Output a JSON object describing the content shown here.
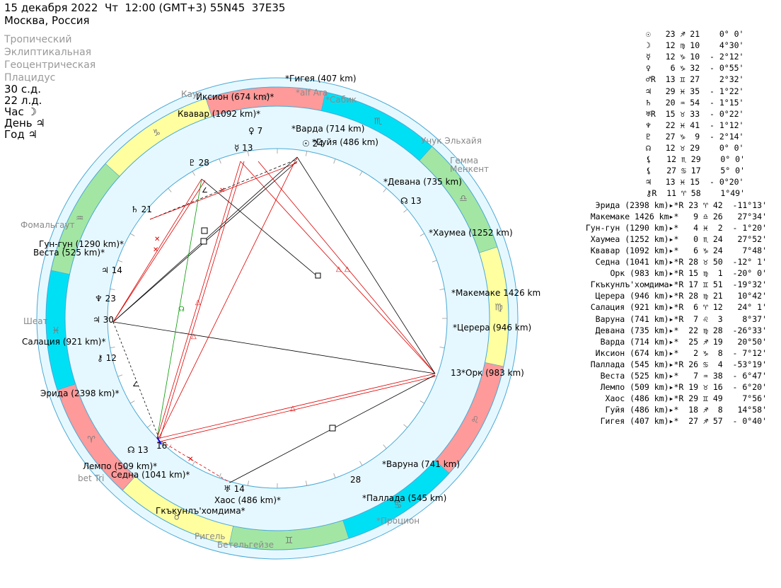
{
  "header": {
    "line1": "15 декабря 2022  Чт  12:00 (GMT+3) 55N45  37E35",
    "line2": "Москва, Россия"
  },
  "settings": {
    "zodiac": "Тропический",
    "coords": "Эклиптикальная",
    "center": "Геоцентрическая",
    "houses": "Плацидус",
    "lunar_day": "30 с.д.",
    "solar_day": "22 л.д.",
    "hour": "Час ☽",
    "day": "День ♃",
    "year": "Год ♃"
  },
  "wheel": {
    "ring_signs": [
      "♐",
      "♏",
      "♎",
      "♍",
      "♌",
      "♋",
      "♊",
      "♉",
      "♈",
      "♓",
      "♒",
      "♑"
    ],
    "cusp_degrees": {
      "c1": "30",
      "c2": "12",
      "c3": "13",
      "c3b": "16",
      "c4": "14",
      "c5": "28",
      "c6": "13",
      "c7": "13",
      "c8": "24",
      "c9": "7",
      "c10": "13",
      "c11": "28",
      "c12": "21",
      "c13": "14",
      "c14": "23"
    },
    "stars": [
      "alf Ara",
      "Сабик",
      "Унук Эльхайя",
      "Гемма",
      "Менкент",
      "Процион",
      "Бетельгейзе",
      "Ригель",
      "bet Tri",
      "Шеат",
      "Фомальгаут",
      "Каус Аустралис"
    ],
    "asteroids": [
      "Гигея (407 km)",
      "Иксион (674 km)",
      "Квавар (1092 km)",
      "Варда (714 km)",
      "Гуйя (486 km)",
      "Девана (735 km)",
      "Хаумеа (1252 km)",
      "Макемаке 1426 km",
      "Церера (946 km)",
      "Орк (983 km)",
      "Варуна (741 km)",
      "Паллада (545 km)",
      "Хаос (486 km)",
      "Гкъкунлъ'хомдима",
      "Седна (1041 km)",
      "Лемпо (509 km)",
      "Эрида (2398 km)",
      "Салация (921 km)",
      "Веста (525 km)",
      "Гун-гун (1290 km)"
    ]
  },
  "table": {
    "planets": [
      {
        "glyph": "☉",
        "r": "",
        "deg": "23",
        "sign": "♐",
        "min": "21",
        "speed": "  0° 0'"
      },
      {
        "glyph": "☽",
        "r": "",
        "deg": "12",
        "sign": "♍",
        "min": "10",
        "speed": "  4°30'"
      },
      {
        "glyph": "☿",
        "r": "",
        "deg": "12",
        "sign": "♑",
        "min": "10",
        "speed": "- 2°12'"
      },
      {
        "glyph": "♀",
        "r": "",
        "deg": " 6",
        "sign": "♑",
        "min": "32",
        "speed": "- 0°55'"
      },
      {
        "glyph": "♂",
        "r": "R",
        "deg": "13",
        "sign": "♊",
        "min": "27",
        "speed": "  2°32'"
      },
      {
        "glyph": "♃",
        "r": "",
        "deg": "29",
        "sign": "♓",
        "min": "35",
        "speed": "- 1°22'"
      },
      {
        "glyph": "♄",
        "r": "",
        "deg": "20",
        "sign": "♒",
        "min": "54",
        "speed": "- 1°15'"
      },
      {
        "glyph": "♅",
        "r": "R",
        "deg": "15",
        "sign": "♉",
        "min": "33",
        "speed": "- 0°22'"
      },
      {
        "glyph": "♆",
        "r": "",
        "deg": "22",
        "sign": "♓",
        "min": "41",
        "speed": "- 1°12'"
      },
      {
        "glyph": "♇",
        "r": "",
        "deg": "27",
        "sign": "♑",
        "min": " 9",
        "speed": "- 2°14'"
      },
      {
        "glyph": "☊",
        "r": "",
        "deg": "12",
        "sign": "♉",
        "min": "29",
        "speed": "  0° 0'"
      },
      {
        "glyph": "⚸",
        "r": "",
        "deg": "12",
        "sign": "♏",
        "min": "29",
        "speed": "  0° 0'"
      },
      {
        "glyph": "⚸",
        "r": "",
        "deg": "27",
        "sign": "♋",
        "min": "17",
        "speed": "  5° 0'"
      },
      {
        "glyph": "♃",
        "r": "",
        "deg": "13",
        "sign": "♓",
        "min": "15",
        "speed": "- 0°20'"
      },
      {
        "glyph": "⚷",
        "r": "R",
        "deg": "11",
        "sign": "♈",
        "min": "58",
        "speed": "  1°49'"
      }
    ],
    "asteroids": [
      {
        "name": "Эрида (2398 km)",
        "r": "R",
        "deg": "23",
        "sign": "♈",
        "min": "42",
        "speed": "-11°13'"
      },
      {
        "name": "Макемаке 1426 km",
        "r": "",
        "deg": " 9",
        "sign": "♎",
        "min": "26",
        "speed": " 27°34'"
      },
      {
        "name": "Гун-гун (1290 km)",
        "r": "",
        "deg": " 4",
        "sign": "♓",
        "min": " 2",
        "speed": "- 1°20'"
      },
      {
        "name": "Хаумеа (1252 km)",
        "r": "",
        "deg": " 0",
        "sign": "♏",
        "min": "24",
        "speed": " 27°52'"
      },
      {
        "name": "Квавар (1092 km)",
        "r": "",
        "deg": " 6",
        "sign": "♑",
        "min": "24",
        "speed": "  7°48'"
      },
      {
        "name": "Седна (1041 km)",
        "r": "R",
        "deg": "28",
        "sign": "♉",
        "min": "50",
        "speed": "-12° 1'"
      },
      {
        "name": "Орк (983 km)",
        "r": "R",
        "deg": "15",
        "sign": "♍",
        "min": " 1",
        "speed": "-20° 0'"
      },
      {
        "name": "Гкъкунлъ'хомдима",
        "r": "R",
        "deg": "17",
        "sign": "♊",
        "min": "51",
        "speed": "-19°32'"
      },
      {
        "name": "Церера (946 km)",
        "r": "R",
        "deg": "28",
        "sign": "♍",
        "min": "21",
        "speed": " 10°42'"
      },
      {
        "name": "Салация (921 km)",
        "r": "R",
        "deg": " 6",
        "sign": "♈",
        "min": "12",
        "speed": " 24° 1'"
      },
      {
        "name": "Варуна (741 km)",
        "r": "R",
        "deg": " 7",
        "sign": "♌",
        "min": " 3",
        "speed": "  8°37'"
      },
      {
        "name": "Девана (735 km)",
        "r": "",
        "deg": "22",
        "sign": "♍",
        "min": "28",
        "speed": "-26°33'"
      },
      {
        "name": "Варда (714 km)",
        "r": "",
        "deg": "25",
        "sign": "♐",
        "min": "19",
        "speed": " 20°50'"
      },
      {
        "name": "Иксион (674 km)",
        "r": "",
        "deg": " 2",
        "sign": "♑",
        "min": " 8",
        "speed": "- 7°12'"
      },
      {
        "name": "Паллада (545 km)",
        "r": "R",
        "deg": "26",
        "sign": "♋",
        "min": " 4",
        "speed": "-53°19'"
      },
      {
        "name": "Веста (525 km)",
        "r": "",
        "deg": " 7",
        "sign": "♒",
        "min": "38",
        "speed": "- 6°47'"
      },
      {
        "name": "Лемпо (509 km)",
        "r": "R",
        "deg": "19",
        "sign": "♉",
        "min": "16",
        "speed": "- 6°20'"
      },
      {
        "name": "Хаос (486 km)",
        "r": "R",
        "deg": "29",
        "sign": "♊",
        "min": "49",
        "speed": "  7°56'"
      },
      {
        "name": "Гуйя (486 km)",
        "r": "",
        "deg": "18",
        "sign": "♐",
        "min": " 8",
        "speed": " 14°58'"
      },
      {
        "name": "Гигея (407 km)",
        "r": "",
        "deg": "27",
        "sign": "♐",
        "min": "57",
        "speed": "- 0°40'"
      }
    ]
  }
}
